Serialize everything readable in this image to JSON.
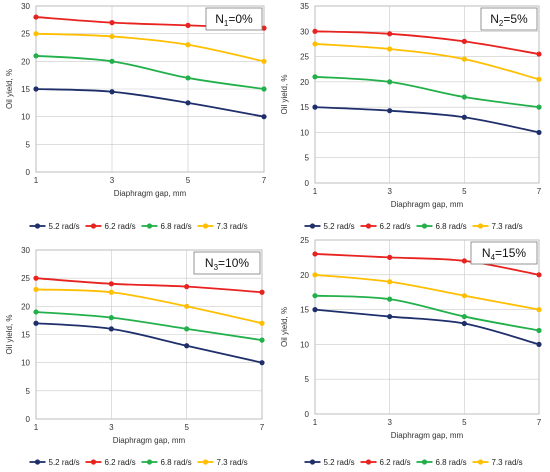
{
  "chart_data": [
    {
      "type": "line",
      "annotation": "N1=0%",
      "annotation_subscript": "1",
      "xlabel": "Diaphragm gap, mm",
      "ylabel": "Oil yield, %",
      "x": [
        1,
        3,
        5,
        7
      ],
      "xticks": [
        "1",
        "3",
        "5",
        "7"
      ],
      "ylim": [
        0,
        30
      ],
      "ytick_step": 5,
      "grid": true,
      "legend_position": "bottom",
      "series": [
        {
          "name": "5.2 rad/s",
          "color": "#1f2f6b",
          "values": [
            15,
            14.5,
            12.5,
            10
          ]
        },
        {
          "name": "6.2 rad/s",
          "color": "#e8221f",
          "values": [
            28,
            27,
            26.5,
            26
          ]
        },
        {
          "name": "6.8 rad/s",
          "color": "#22b04a",
          "values": [
            21,
            20,
            17,
            15
          ]
        },
        {
          "name": "7.3 rad/s",
          "color": "#ffbf00",
          "values": [
            25,
            24.5,
            23,
            20
          ]
        }
      ]
    },
    {
      "type": "line",
      "annotation": "N2=5%",
      "annotation_subscript": "2",
      "xlabel": "Diaphragm gap, mm",
      "ylabel": "Oil yield, %",
      "x": [
        1,
        3,
        5,
        7
      ],
      "xticks": [
        "1",
        "3",
        "5",
        "7"
      ],
      "ylim": [
        0,
        35
      ],
      "ytick_step": 5,
      "grid": true,
      "legend_position": "bottom",
      "series": [
        {
          "name": "5.2 rad/s",
          "color": "#1f2f6b",
          "values": [
            15,
            14.3,
            13,
            10
          ]
        },
        {
          "name": "6.2 rad/s",
          "color": "#e8221f",
          "values": [
            30,
            29.5,
            28,
            25.5
          ]
        },
        {
          "name": "6.8 rad/s",
          "color": "#22b04a",
          "values": [
            21,
            20,
            17,
            15
          ]
        },
        {
          "name": "7.3 rad/s",
          "color": "#ffbf00",
          "values": [
            27.5,
            26.5,
            24.5,
            20.5
          ]
        }
      ]
    },
    {
      "type": "line",
      "annotation": "N3=10%",
      "annotation_subscript": "3",
      "xlabel": "Diaphragm gap, mm",
      "ylabel": "Oil yield, %",
      "x": [
        1,
        3,
        5,
        7
      ],
      "xticks": [
        "1",
        "3",
        "5",
        "7"
      ],
      "ylim": [
        0,
        30
      ],
      "ytick_step": 5,
      "grid": true,
      "legend_position": "bottom",
      "series": [
        {
          "name": "5.2 rad/s",
          "color": "#1f2f6b",
          "values": [
            17,
            16,
            13,
            10
          ]
        },
        {
          "name": "6.2 rad/s",
          "color": "#e8221f",
          "values": [
            25,
            24,
            23.5,
            22.5
          ]
        },
        {
          "name": "6.8 rad/s",
          "color": "#22b04a",
          "values": [
            19,
            18,
            16,
            14
          ]
        },
        {
          "name": "7.3 rad/s",
          "color": "#ffbf00",
          "values": [
            23,
            22.5,
            20,
            17
          ]
        }
      ]
    },
    {
      "type": "line",
      "annotation": "N4=15%",
      "annotation_subscript": "4",
      "xlabel": "Diaphragm gap, mm",
      "ylabel": "Oil yield, %",
      "x": [
        1,
        3,
        5,
        7
      ],
      "xticks": [
        "1",
        "3",
        "5",
        "7"
      ],
      "ylim": [
        0,
        25
      ],
      "ytick_step": 5,
      "grid": true,
      "legend_position": "bottom",
      "series": [
        {
          "name": "5.2 rad/s",
          "color": "#1f2f6b",
          "values": [
            15,
            14,
            13,
            10
          ]
        },
        {
          "name": "6.2 rad/s",
          "color": "#e8221f",
          "values": [
            23,
            22.5,
            22,
            20
          ]
        },
        {
          "name": "6.8 rad/s",
          "color": "#22b04a",
          "values": [
            17,
            16.5,
            14,
            12
          ]
        },
        {
          "name": "7.3 rad/s",
          "color": "#ffbf00",
          "values": [
            20,
            19,
            17,
            15
          ]
        }
      ]
    }
  ]
}
